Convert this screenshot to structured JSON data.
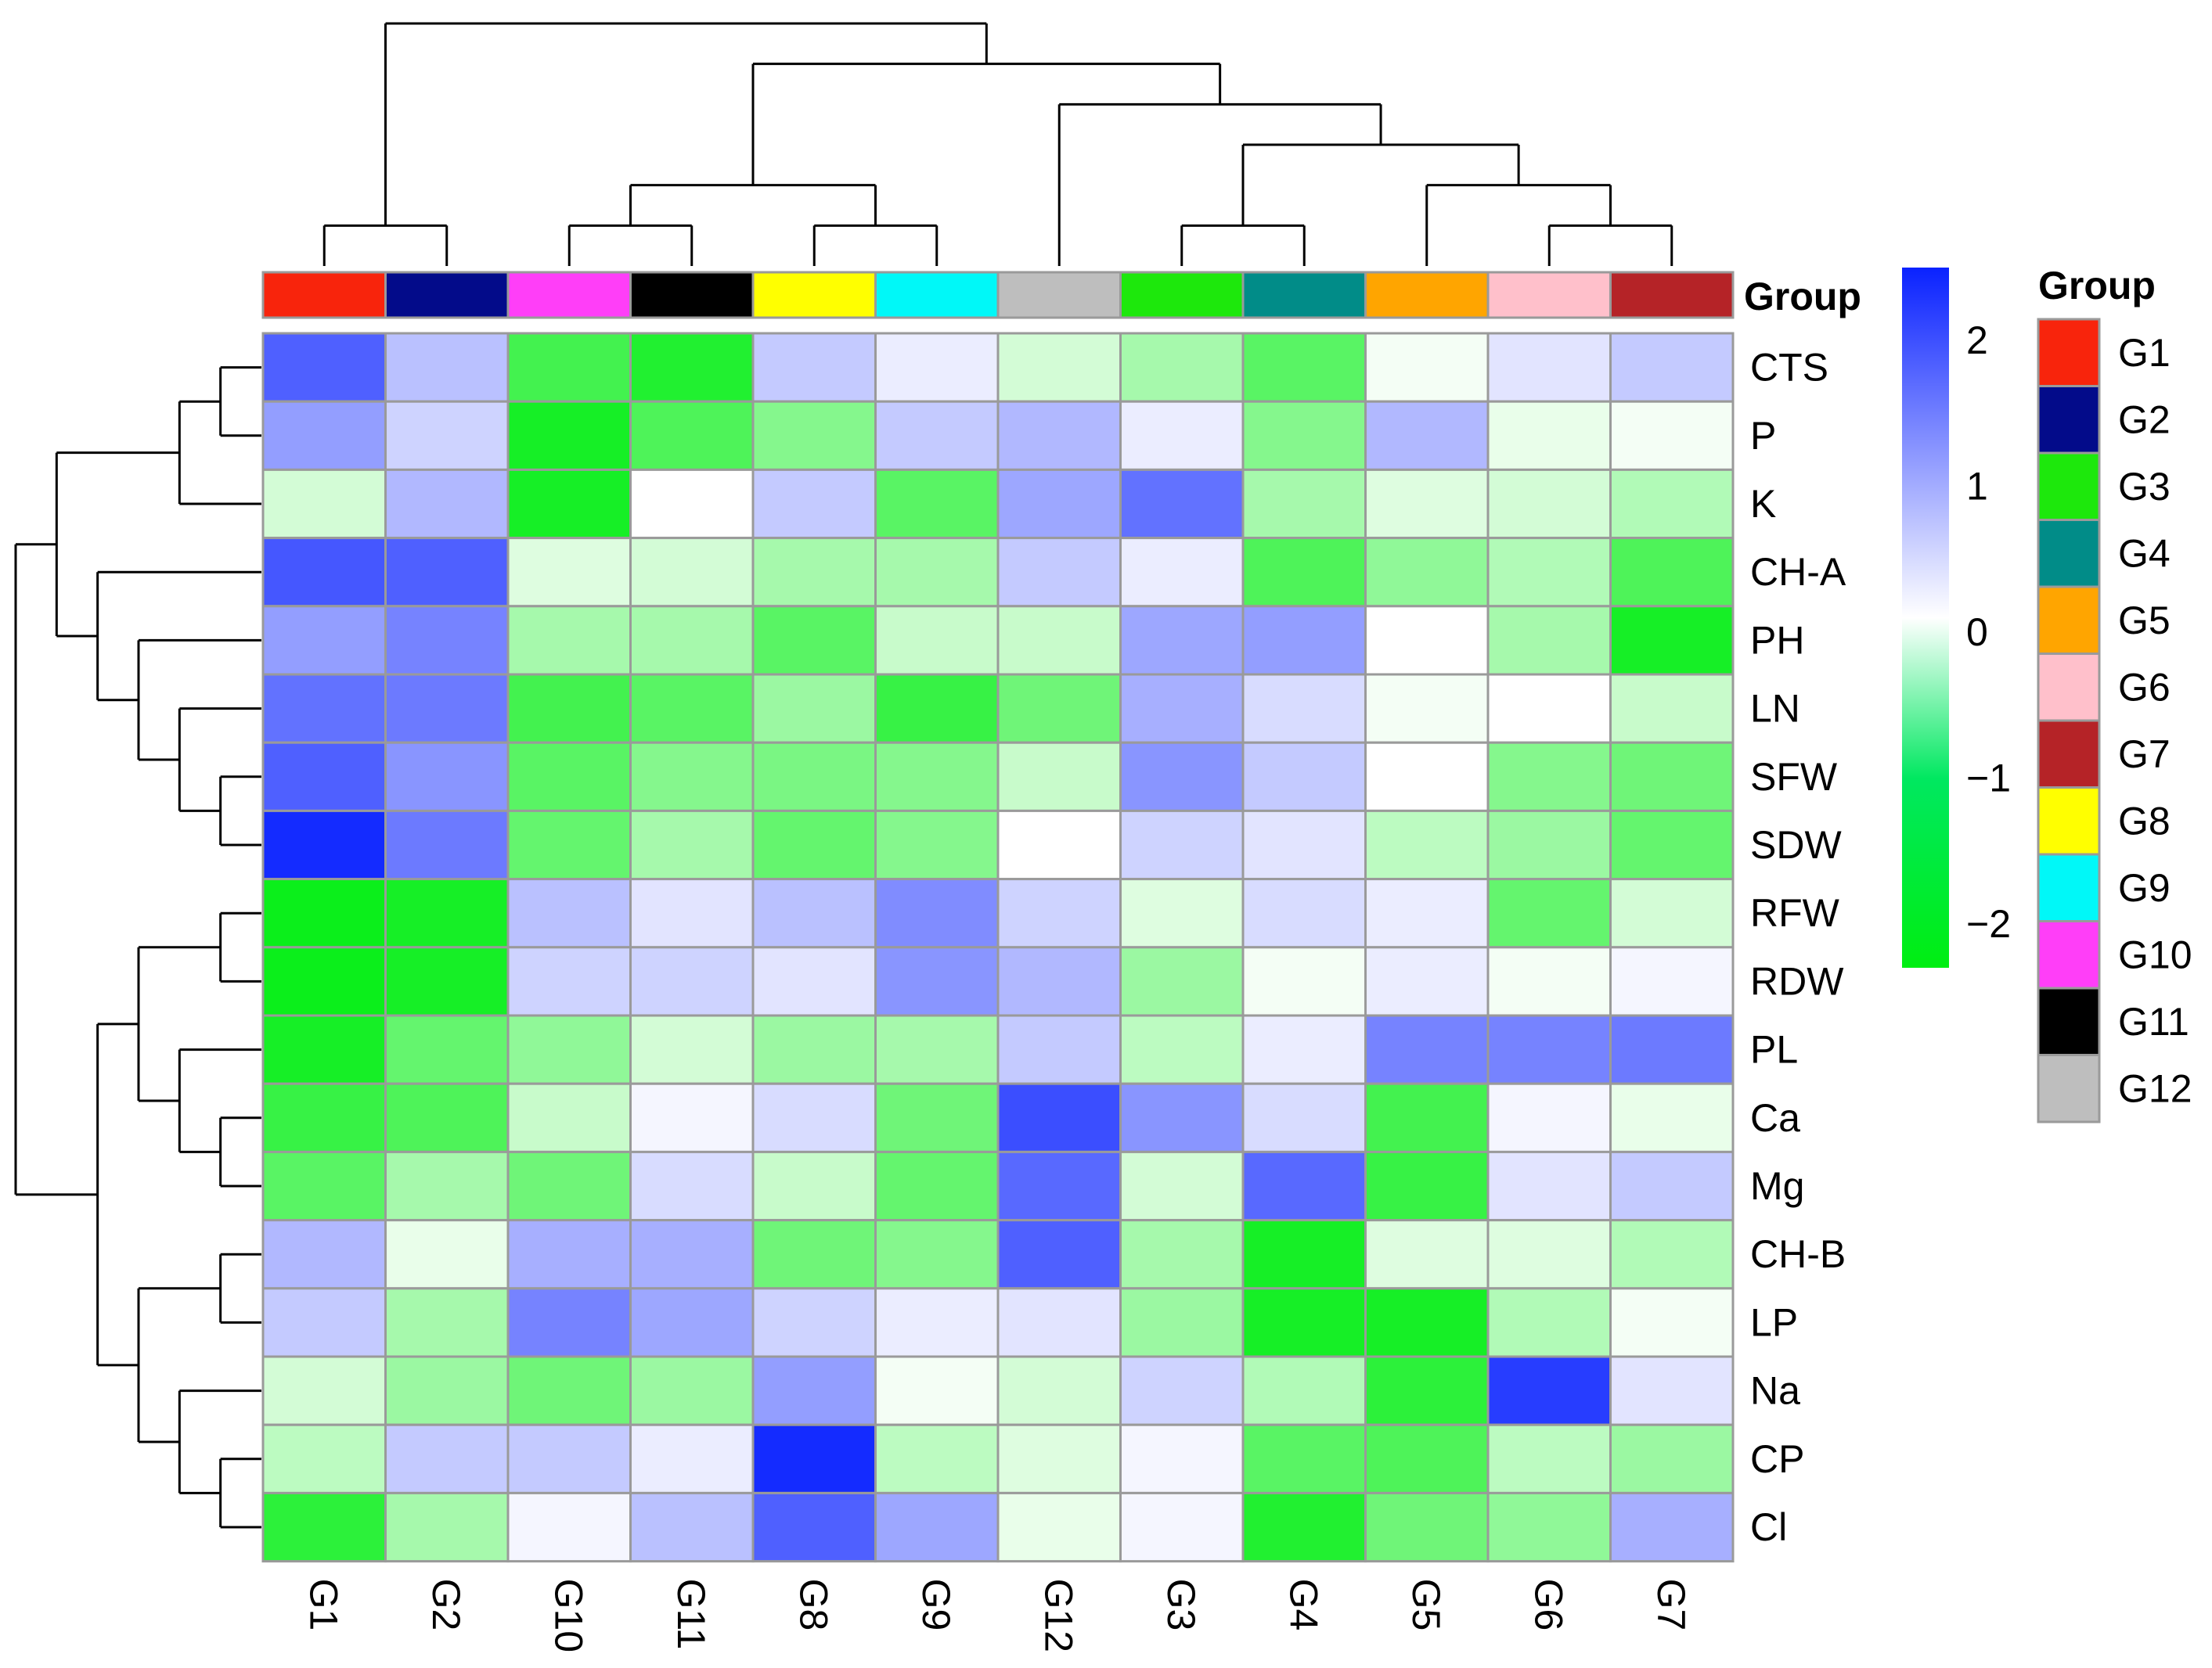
{
  "chart_data": {
    "type": "heatmap",
    "title": "",
    "xlabel": "",
    "ylabel": "",
    "columns": [
      "G1",
      "G2",
      "G10",
      "G11",
      "G8",
      "G9",
      "G12",
      "G3",
      "G4",
      "G5",
      "G6",
      "G7"
    ],
    "rows": [
      "CTS",
      "P",
      "K",
      "CH-A",
      "PH",
      "LN",
      "SFW",
      "SDW",
      "RFW",
      "RDW",
      "PL",
      "Ca",
      "Mg",
      "CH-B",
      "LP",
      "Na",
      "CP",
      "Cl"
    ],
    "values": [
      [
        1.8,
        0.7,
        -1.7,
        -2.0,
        0.6,
        0.2,
        -0.4,
        -0.8,
        -1.5,
        -0.1,
        0.3,
        0.6
      ],
      [
        1.1,
        0.5,
        -2.1,
        -1.6,
        -1.1,
        0.6,
        0.8,
        0.2,
        -1.1,
        0.8,
        -0.2,
        -0.1
      ],
      [
        -0.4,
        0.8,
        -2.1,
        0.0,
        0.6,
        -1.5,
        1.0,
        1.6,
        -0.8,
        -0.3,
        -0.4,
        -0.7
      ],
      [
        1.9,
        1.8,
        -0.3,
        -0.4,
        -0.8,
        -0.8,
        0.6,
        0.2,
        -1.6,
        -1.0,
        -0.7,
        -1.6
      ],
      [
        1.1,
        1.4,
        -0.8,
        -0.8,
        -1.5,
        -0.5,
        -0.5,
        1.0,
        1.1,
        0.0,
        -0.8,
        -2.1
      ],
      [
        1.6,
        1.5,
        -1.7,
        -1.5,
        -0.9,
        -1.8,
        -1.3,
        0.9,
        0.4,
        -0.1,
        0.0,
        -0.5
      ],
      [
        1.8,
        1.2,
        -1.5,
        -1.1,
        -1.2,
        -1.1,
        -0.5,
        1.2,
        0.6,
        0.0,
        -1.1,
        -1.3
      ],
      [
        2.4,
        1.5,
        -1.4,
        -0.8,
        -1.4,
        -1.1,
        0.0,
        0.5,
        0.3,
        -0.6,
        -0.9,
        -1.4
      ],
      [
        -2.2,
        -2.1,
        0.7,
        0.3,
        0.7,
        1.3,
        0.5,
        -0.3,
        0.4,
        0.2,
        -1.4,
        -0.4
      ],
      [
        -2.2,
        -2.1,
        0.5,
        0.5,
        0.3,
        1.2,
        0.8,
        -0.9,
        -0.1,
        0.2,
        -0.1,
        0.1
      ],
      [
        -2.1,
        -1.4,
        -1.0,
        -0.4,
        -0.9,
        -0.8,
        0.6,
        -0.6,
        0.2,
        1.4,
        1.4,
        1.5
      ],
      [
        -1.8,
        -1.6,
        -0.5,
        0.1,
        0.4,
        -1.3,
        2.0,
        1.2,
        0.4,
        -1.7,
        0.1,
        -0.2
      ],
      [
        -1.5,
        -0.8,
        -1.3,
        0.4,
        -0.5,
        -1.4,
        1.7,
        -0.4,
        1.7,
        -1.8,
        0.3,
        0.6
      ],
      [
        0.8,
        -0.2,
        0.9,
        0.9,
        -1.3,
        -1.1,
        1.8,
        -0.8,
        -2.1,
        -0.3,
        -0.3,
        -0.7
      ],
      [
        0.6,
        -0.8,
        1.4,
        1.0,
        0.5,
        0.2,
        0.3,
        -0.9,
        -2.1,
        -2.1,
        -0.7,
        -0.1
      ],
      [
        -0.4,
        -0.9,
        -1.3,
        -0.9,
        1.1,
        -0.1,
        -0.4,
        0.5,
        -0.7,
        -1.9,
        2.2,
        0.3
      ],
      [
        -0.6,
        0.6,
        0.6,
        0.2,
        2.4,
        -0.6,
        -0.3,
        0.1,
        -1.5,
        -1.6,
        -0.6,
        -0.9
      ],
      [
        -1.9,
        -0.8,
        0.1,
        0.7,
        1.8,
        1.0,
        -0.2,
        0.1,
        -2.0,
        -1.3,
        -1.0,
        0.9
      ]
    ],
    "color_scale": {
      "min": -2.3,
      "mid": 0,
      "max": 2.5,
      "low": "#00ee11",
      "mid_color": "#ffffff",
      "high": "#0a22ff"
    },
    "colorbar_ticks": [
      "2",
      "1",
      "0",
      "−1",
      "−2"
    ],
    "colorbar_tick_values": [
      2,
      1,
      0,
      -1,
      -2
    ],
    "group_annotation": {
      "title": "Group",
      "colors": {
        "G1": "#f8240c",
        "G2": "#030b8a",
        "G3": "#1de80c",
        "G4": "#018c88",
        "G5": "#ffa500",
        "G6": "#ffc0cb",
        "G7": "#b52327",
        "G8": "#ffff00",
        "G9": "#00f8f8",
        "G10": "#ff3ef8",
        "G11": "#000000",
        "G12": "#bebebe"
      }
    },
    "legend": {
      "title": "Group",
      "entries": [
        "G1",
        "G2",
        "G3",
        "G4",
        "G5",
        "G6",
        "G7",
        "G8",
        "G9",
        "G10",
        "G11",
        "G12"
      ]
    },
    "column_dendrogram": "((G1,G2),(((G10,G11),(G8,G9)),(G12,((G3,G4),(G5,(G6,G7))))))",
    "row_dendrogram": "((((CTS,P),K),(CH-A,(PH,(LN,(SFW,SDW))))),(((RFW,RDW),(PL,(Ca,Mg))),((CH-B,LP),(Na,(CP,Cl)))))",
    "grid": true
  }
}
